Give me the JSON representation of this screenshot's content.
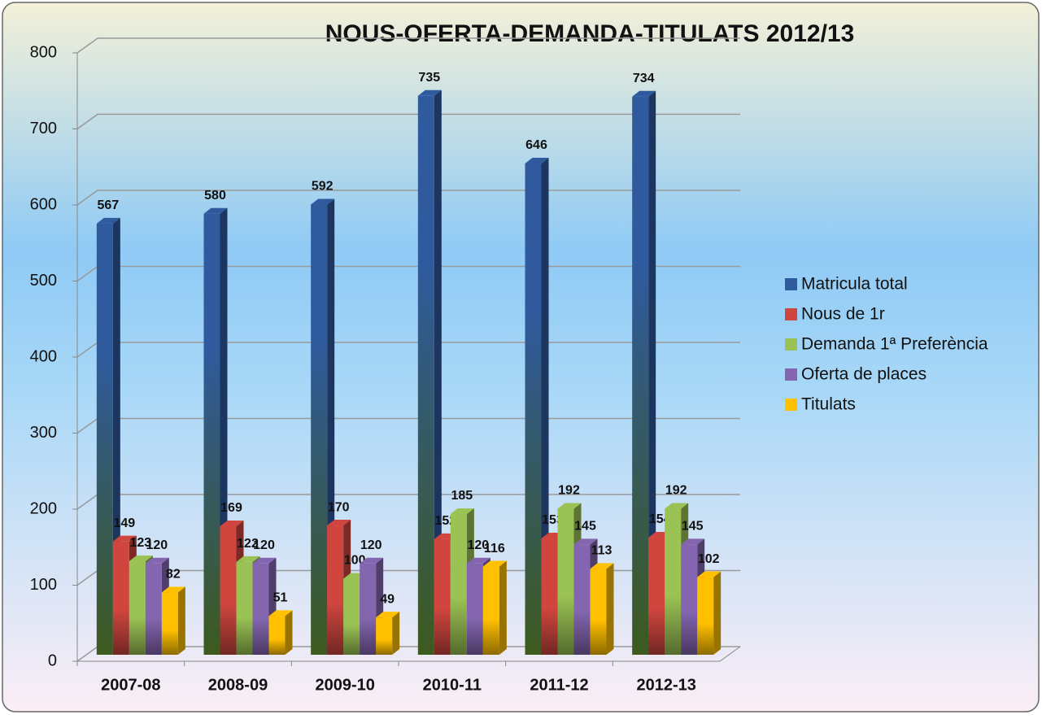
{
  "chart_data": {
    "type": "bar3d",
    "title": "NOUS-OFERTA-DEMANDA-TITULATS 2012/13",
    "categories": [
      "2007-08",
      "2008-09",
      "2009-10",
      "2010-11",
      "2011-12",
      "2012-13"
    ],
    "series": [
      {
        "name": "Matricula total",
        "color": "#2f5a9e",
        "values": [
          567,
          580,
          592,
          735,
          646,
          734
        ]
      },
      {
        "name": "Nous de 1r",
        "color": "#d0463f",
        "values": [
          149,
          169,
          170,
          152,
          153,
          154
        ]
      },
      {
        "name": "Demanda 1ª Preferència",
        "color": "#9bc254",
        "values": [
          123,
          122,
          100,
          185,
          192,
          192
        ]
      },
      {
        "name": "Oferta de places",
        "color": "#8466b0",
        "values": [
          120,
          120,
          120,
          120,
          145,
          145
        ]
      },
      {
        "name": "Titulats",
        "color": "#ffc000",
        "values": [
          82,
          51,
          49,
          116,
          113,
          102
        ]
      }
    ],
    "ylim": [
      0,
      800
    ],
    "yticks": [
      0,
      100,
      200,
      300,
      400,
      500,
      600,
      700,
      800
    ],
    "grid": true,
    "legend": "right"
  }
}
